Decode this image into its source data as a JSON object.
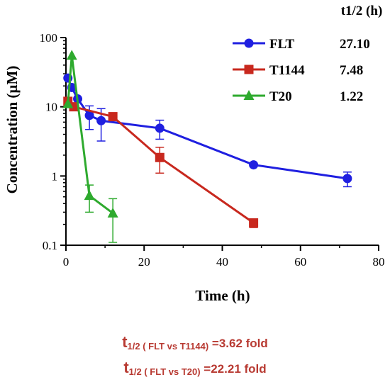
{
  "chart_data": {
    "type": "line",
    "xlabel": "Time (h)",
    "ylabel": "Concentration (µM)",
    "xlim": [
      0,
      80
    ],
    "ylim": [
      0.1,
      100
    ],
    "yscale": "log",
    "xticks": [
      "0",
      "20",
      "40",
      "60",
      "80"
    ],
    "yticks": [
      "0.1",
      "1",
      "10",
      "100"
    ],
    "legend_header": "t1/2 (h)",
    "legend_placement": "top-right",
    "series": [
      {
        "name": "FLT",
        "halflife": "27.10",
        "color": "#1f1fe0",
        "marker": "circle",
        "x": [
          0.5,
          1.5,
          3,
          6,
          9,
          24,
          48,
          72
        ],
        "y": [
          26,
          19,
          13,
          7.5,
          6.3,
          4.9,
          1.45,
          0.92
        ],
        "err": [
          0,
          0,
          0,
          2.8,
          3.1,
          1.5,
          0,
          0.22
        ]
      },
      {
        "name": "T1144",
        "halflife": "7.48",
        "color": "#c8281e",
        "marker": "square",
        "x": [
          0.5,
          2,
          12,
          24,
          48
        ],
        "y": [
          12,
          10,
          7.2,
          1.85,
          0.21
        ],
        "err": [
          0,
          0,
          0,
          0.75,
          0.03
        ]
      },
      {
        "name": "T20",
        "halflife": "1.22",
        "color": "#2eaa2e",
        "marker": "triangle",
        "x": [
          0.5,
          1.5,
          6,
          12
        ],
        "y": [
          11,
          55,
          0.52,
          0.29
        ],
        "err": [
          0,
          0,
          0.22,
          0.18
        ]
      }
    ]
  },
  "footnotes": {
    "line1": {
      "t": "t",
      "sub": "1/2 ( FLT vs T1144)",
      "rest": " =3.62 fold"
    },
    "line2": {
      "t": "t",
      "sub": "1/2 ( FLT vs T20)",
      "rest": " =22.21 fold"
    }
  }
}
